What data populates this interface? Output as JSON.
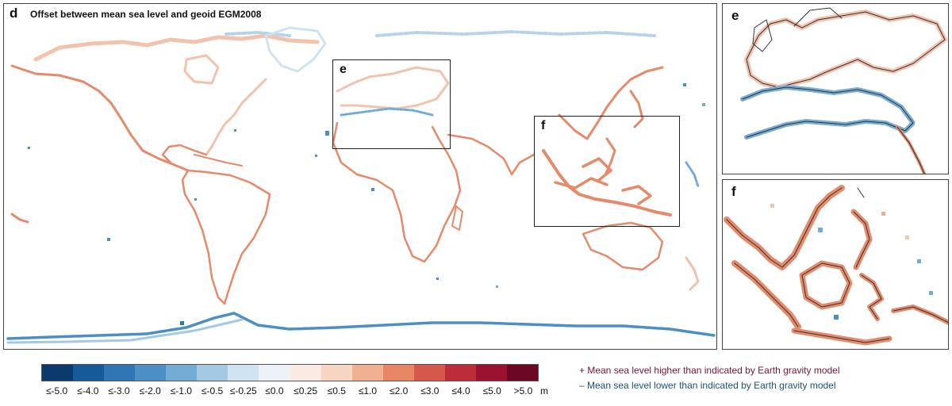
{
  "main_panel": {
    "letter": "d",
    "title": "Offset between mean sea level and geoid EGM2008",
    "region_boxes": [
      {
        "letter": "e"
      },
      {
        "letter": "f"
      }
    ]
  },
  "insets": [
    {
      "letter": "e"
    },
    {
      "letter": "f"
    }
  ],
  "legend": {
    "unit": "m",
    "bins": [
      {
        "label": "≤-5.0",
        "color": "#0b3a6e"
      },
      {
        "label": "≤-4.0",
        "color": "#175a9a"
      },
      {
        "label": "≤-3.0",
        "color": "#2f77b4"
      },
      {
        "label": "≤-2.0",
        "color": "#4b8fc6"
      },
      {
        "label": "≤-1.0",
        "color": "#75acd6"
      },
      {
        "label": "≤-0.5",
        "color": "#a3c9e5"
      },
      {
        "label": "≤-0.25",
        "color": "#cfe2f1"
      },
      {
        "label": "≤0.0",
        "color": "#ecf1f7"
      },
      {
        "label": "≤0.25",
        "color": "#faeae3"
      },
      {
        "label": "≤0.5",
        "color": "#f8d4c3"
      },
      {
        "label": "≤1.0",
        "color": "#f2b093"
      },
      {
        "label": "≤2.0",
        "color": "#e88766"
      },
      {
        "label": "≤3.0",
        "color": "#d6584a"
      },
      {
        "label": "≤4.0",
        "color": "#bc2d39"
      },
      {
        "label": "≤5.0",
        "color": "#9b1230"
      },
      {
        "label": ">5.0",
        "color": "#6c0726"
      }
    ]
  },
  "notes": {
    "higher": "+ Mean sea level higher than indicated by Earth gravity model",
    "lower": "– Mean sea level lower than indicated by Earth gravity model"
  },
  "colors": {
    "positive_coast": "#e58a6a",
    "positive_faint": "#f3c2ad",
    "negative_coast": "#5e9fd0",
    "negative_faint": "#b7d3ea",
    "coastline": "#333333"
  }
}
